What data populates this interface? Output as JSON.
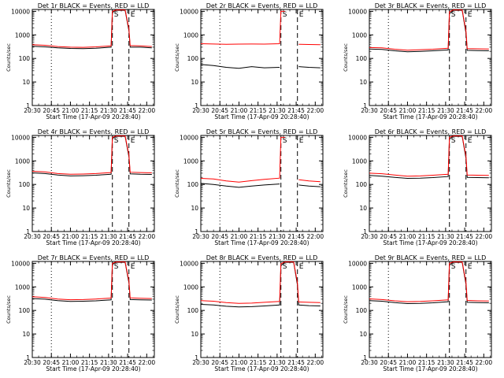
{
  "xlabel": "Start Time (17-Apr-09 20:28:40)",
  "ylabel": "Counts/sec",
  "x_tick_labels": [
    "20:30",
    "20:45",
    "21:00",
    "21:15",
    "21:30",
    "21:45",
    "22:00"
  ],
  "y_tick_labels": [
    "1",
    "10",
    "100",
    "1000",
    "10000"
  ],
  "markers": {
    "S": "S",
    "E": "E"
  },
  "colors": {
    "events": "#000000",
    "lld": "#ff0000"
  },
  "chart_data": [
    {
      "type": "line",
      "title": "Det 1r BLACK = Events, RED = LLD",
      "xlabel": "Start Time (17-Apr-09 20:28:40)",
      "ylabel": "Counts/sec",
      "xlim": [
        "20:30",
        "22:06"
      ],
      "ylim": [
        1,
        12000
      ],
      "yscale": "log",
      "vlines": [
        {
          "x": "20:45",
          "style": "dotted"
        },
        {
          "x": "21:33",
          "style": "dashed",
          "label": "S"
        },
        {
          "x": "21:46",
          "style": "dashed",
          "label": "E"
        }
      ],
      "series": [
        {
          "name": "Events",
          "x": [
            "20:30",
            "20:40",
            "20:50",
            "21:00",
            "21:10",
            "21:20",
            "21:32",
            "21:33",
            "21:36",
            "21:43",
            "21:46",
            "21:47",
            "21:55",
            "22:00",
            "22:04"
          ],
          "values": [
            330,
            310,
            280,
            265,
            260,
            270,
            300,
            9000,
            11000,
            11000,
            1500,
            300,
            300,
            290,
            280
          ]
        },
        {
          "name": "LLD",
          "x": [
            "20:30",
            "20:40",
            "20:50",
            "21:00",
            "21:10",
            "21:20",
            "21:32",
            "21:33",
            "21:36",
            "21:43",
            "21:46",
            "21:47",
            "21:55",
            "22:00",
            "22:04"
          ],
          "values": [
            380,
            360,
            320,
            300,
            295,
            310,
            340,
            10000,
            11500,
            11500,
            1800,
            350,
            340,
            330,
            320
          ]
        }
      ]
    },
    {
      "type": "line",
      "title": "Det 2r BLACK = Events, RED = LLD",
      "xlabel": "Start Time (17-Apr-09 20:28:40)",
      "ylabel": "Counts/sec",
      "xlim": [
        "20:30",
        "22:06"
      ],
      "ylim": [
        1,
        12000
      ],
      "yscale": "log",
      "vlines": [
        {
          "x": "20:45",
          "style": "dotted"
        },
        {
          "x": "21:33",
          "style": "dashed",
          "label": "S"
        },
        {
          "x": "21:46",
          "style": "dashed",
          "label": "E"
        }
      ],
      "series": [
        {
          "name": "Events",
          "x": [
            "20:30",
            "20:40",
            "20:50",
            "21:00",
            "21:10",
            "21:20",
            "21:32",
            "21:33",
            "21:36",
            "21:38",
            "21:43",
            "21:47",
            "21:55",
            "22:04"
          ],
          "values": [
            55,
            50,
            42,
            38,
            45,
            40,
            42,
            null,
            null,
            null,
            null,
            45,
            42,
            40
          ]
        },
        {
          "name": "LLD",
          "x": [
            "20:30",
            "20:40",
            "20:50",
            "21:00",
            "21:10",
            "21:20",
            "21:32",
            "21:33",
            "21:36",
            "21:38",
            "21:43",
            "21:47",
            "21:55",
            "22:04"
          ],
          "values": [
            420,
            410,
            400,
            405,
            410,
            405,
            420,
            10000,
            10000,
            null,
            null,
            400,
            390,
            380
          ]
        }
      ]
    },
    {
      "type": "line",
      "title": "Det 3r BLACK = Events, RED = LLD",
      "xlabel": "Start Time (17-Apr-09 20:28:40)",
      "ylabel": "Counts/sec",
      "xlim": [
        "20:30",
        "22:06"
      ],
      "ylim": [
        1,
        12000
      ],
      "yscale": "log",
      "vlines": [
        {
          "x": "20:45",
          "style": "dotted"
        },
        {
          "x": "21:33",
          "style": "dashed",
          "label": "S"
        },
        {
          "x": "21:46",
          "style": "dashed",
          "label": "E"
        }
      ],
      "series": [
        {
          "name": "Events",
          "x": [
            "20:30",
            "20:40",
            "20:50",
            "21:00",
            "21:10",
            "21:20",
            "21:32",
            "21:33",
            "21:36",
            "21:43",
            "21:46",
            "21:47",
            "21:55",
            "22:04"
          ],
          "values": [
            250,
            240,
            210,
            190,
            200,
            210,
            230,
            8000,
            11000,
            11000,
            1200,
            220,
            215,
            210
          ]
        },
        {
          "name": "LLD",
          "x": [
            "20:30",
            "20:40",
            "20:50",
            "21:00",
            "21:10",
            "21:20",
            "21:32",
            "21:33",
            "21:36",
            "21:43",
            "21:46",
            "21:47",
            "21:55",
            "22:04"
          ],
          "values": [
            290,
            280,
            245,
            225,
            235,
            245,
            270,
            9500,
            11500,
            11500,
            1500,
            260,
            255,
            250
          ]
        }
      ]
    },
    {
      "type": "line",
      "title": "Det 4r BLACK = Events, RED = LLD",
      "xlabel": "Start Time (17-Apr-09 20:28:40)",
      "ylabel": "Counts/sec",
      "xlim": [
        "20:30",
        "22:06"
      ],
      "ylim": [
        1,
        12000
      ],
      "yscale": "log",
      "vlines": [
        {
          "x": "20:45",
          "style": "dotted"
        },
        {
          "x": "21:33",
          "style": "dashed",
          "label": "S"
        },
        {
          "x": "21:46",
          "style": "dashed",
          "label": "E"
        }
      ],
      "series": [
        {
          "name": "Events",
          "x": [
            "20:30",
            "20:40",
            "20:50",
            "21:00",
            "21:10",
            "21:20",
            "21:32",
            "21:33",
            "21:36",
            "21:43",
            "21:46",
            "21:47",
            "21:55",
            "22:04"
          ],
          "values": [
            310,
            290,
            250,
            230,
            235,
            245,
            270,
            9000,
            11000,
            11000,
            1500,
            280,
            270,
            265
          ]
        },
        {
          "name": "LLD",
          "x": [
            "20:30",
            "20:40",
            "20:50",
            "21:00",
            "21:10",
            "21:20",
            "21:32",
            "21:33",
            "21:36",
            "21:43",
            "21:46",
            "21:47",
            "21:55",
            "22:04"
          ],
          "values": [
            360,
            340,
            290,
            270,
            275,
            290,
            320,
            10000,
            11500,
            11500,
            1800,
            330,
            320,
            310
          ]
        }
      ]
    },
    {
      "type": "line",
      "title": "Det 5r BLACK = Events, RED = LLD",
      "xlabel": "Start Time (17-Apr-09 20:28:40)",
      "ylabel": "Counts/sec",
      "xlim": [
        "20:30",
        "22:06"
      ],
      "ylim": [
        1,
        12000
      ],
      "yscale": "log",
      "vlines": [
        {
          "x": "20:45",
          "style": "dotted"
        },
        {
          "x": "21:33",
          "style": "dashed",
          "label": "S"
        },
        {
          "x": "21:46",
          "style": "dashed",
          "label": "E"
        }
      ],
      "series": [
        {
          "name": "Events",
          "x": [
            "20:30",
            "20:40",
            "20:50",
            "21:00",
            "21:10",
            "21:20",
            "21:32",
            "21:33",
            "21:36",
            "21:38",
            "21:43",
            "21:47",
            "21:55",
            "22:04"
          ],
          "values": [
            110,
            100,
            85,
            75,
            85,
            95,
            105,
            null,
            null,
            null,
            null,
            95,
            85,
            80
          ]
        },
        {
          "name": "LLD",
          "x": [
            "20:30",
            "20:40",
            "20:50",
            "21:00",
            "21:10",
            "21:20",
            "21:32",
            "21:33",
            "21:36",
            "21:38",
            "21:43",
            "21:47",
            "21:55",
            "22:04"
          ],
          "values": [
            180,
            170,
            140,
            125,
            145,
            165,
            185,
            10000,
            10000,
            null,
            null,
            160,
            140,
            130
          ]
        }
      ]
    },
    {
      "type": "line",
      "title": "Det 6r BLACK = Events, RED = LLD",
      "xlabel": "Start Time (17-Apr-09 20:28:40)",
      "ylabel": "Counts/sec",
      "xlim": [
        "20:30",
        "22:06"
      ],
      "ylim": [
        1,
        12000
      ],
      "yscale": "log",
      "vlines": [
        {
          "x": "20:45",
          "style": "dotted"
        },
        {
          "x": "21:33",
          "style": "dashed",
          "label": "S"
        },
        {
          "x": "21:46",
          "style": "dashed",
          "label": "E"
        }
      ],
      "series": [
        {
          "name": "Events",
          "x": [
            "20:30",
            "20:40",
            "20:50",
            "21:00",
            "21:10",
            "21:20",
            "21:32",
            "21:33",
            "21:36",
            "21:43",
            "21:46",
            "21:47",
            "21:55",
            "22:04"
          ],
          "values": [
            240,
            225,
            200,
            180,
            185,
            195,
            215,
            8500,
            11000,
            11000,
            1300,
            200,
            195,
            190
          ]
        },
        {
          "name": "LLD",
          "x": [
            "20:30",
            "20:40",
            "20:50",
            "21:00",
            "21:10",
            "21:20",
            "21:32",
            "21:33",
            "21:36",
            "21:43",
            "21:46",
            "21:47",
            "21:55",
            "22:04"
          ],
          "values": [
            300,
            285,
            250,
            225,
            230,
            245,
            270,
            10000,
            11500,
            11500,
            1600,
            250,
            245,
            240
          ]
        }
      ]
    },
    {
      "type": "line",
      "title": "Det 7r BLACK = Events, RED = LLD",
      "xlabel": "Start Time (17-Apr-09 20:28:40)",
      "ylabel": "Counts/sec",
      "xlim": [
        "20:30",
        "22:06"
      ],
      "ylim": [
        1,
        12000
      ],
      "yscale": "log",
      "vlines": [
        {
          "x": "20:45",
          "style": "dotted"
        },
        {
          "x": "21:33",
          "style": "dashed",
          "label": "S"
        },
        {
          "x": "21:46",
          "style": "dashed",
          "label": "E"
        }
      ],
      "series": [
        {
          "name": "Events",
          "x": [
            "20:30",
            "20:40",
            "20:50",
            "21:00",
            "21:10",
            "21:20",
            "21:32",
            "21:33",
            "21:36",
            "21:43",
            "21:46",
            "21:47",
            "21:55",
            "22:04"
          ],
          "values": [
            320,
            300,
            260,
            240,
            245,
            255,
            280,
            9000,
            11000,
            11000,
            1500,
            290,
            280,
            275
          ]
        },
        {
          "name": "LLD",
          "x": [
            "20:30",
            "20:40",
            "20:50",
            "21:00",
            "21:10",
            "21:20",
            "21:32",
            "21:33",
            "21:36",
            "21:43",
            "21:46",
            "21:47",
            "21:55",
            "22:04"
          ],
          "values": [
            380,
            355,
            305,
            285,
            290,
            305,
            335,
            10000,
            11500,
            11500,
            1800,
            340,
            330,
            320
          ]
        }
      ]
    },
    {
      "type": "line",
      "title": "Det 8r BLACK = Events, RED = LLD",
      "xlabel": "Start Time (17-Apr-09 20:28:40)",
      "ylabel": "Counts/sec",
      "xlim": [
        "20:30",
        "22:06"
      ],
      "ylim": [
        1,
        12000
      ],
      "yscale": "log",
      "vlines": [
        {
          "x": "20:45",
          "style": "dotted"
        },
        {
          "x": "21:33",
          "style": "dashed",
          "label": "S"
        },
        {
          "x": "21:46",
          "style": "dashed",
          "label": "E"
        }
      ],
      "series": [
        {
          "name": "Events",
          "x": [
            "20:30",
            "20:40",
            "20:50",
            "21:00",
            "21:10",
            "21:20",
            "21:32",
            "21:33",
            "21:36",
            "21:43",
            "21:46",
            "21:47",
            "21:55",
            "22:04"
          ],
          "values": [
            180,
            170,
            150,
            140,
            145,
            155,
            170,
            8000,
            11000,
            11000,
            1200,
            170,
            160,
            155
          ]
        },
        {
          "name": "LLD",
          "x": [
            "20:30",
            "20:40",
            "20:50",
            "21:00",
            "21:10",
            "21:20",
            "21:32",
            "21:33",
            "21:36",
            "21:43",
            "21:46",
            "21:47",
            "21:55",
            "22:04"
          ],
          "values": [
            260,
            245,
            215,
            200,
            205,
            220,
            240,
            9500,
            11500,
            11500,
            1500,
            230,
            220,
            215
          ]
        }
      ]
    },
    {
      "type": "line",
      "title": "Det 9r BLACK = Events, RED = LLD",
      "xlabel": "Start Time (17-Apr-09 20:28:40)",
      "ylabel": "Counts/sec",
      "xlim": [
        "20:30",
        "22:06"
      ],
      "ylim": [
        1,
        12000
      ],
      "yscale": "log",
      "vlines": [
        {
          "x": "20:45",
          "style": "dotted"
        },
        {
          "x": "21:33",
          "style": "dashed",
          "label": "S"
        },
        {
          "x": "21:46",
          "style": "dashed",
          "label": "E"
        }
      ],
      "series": [
        {
          "name": "Events",
          "x": [
            "20:30",
            "20:40",
            "20:50",
            "21:00",
            "21:10",
            "21:20",
            "21:32",
            "21:33",
            "21:36",
            "21:43",
            "21:46",
            "21:47",
            "21:55",
            "22:04"
          ],
          "values": [
            260,
            245,
            215,
            195,
            200,
            210,
            235,
            8500,
            11000,
            11000,
            1300,
            220,
            215,
            210
          ]
        },
        {
          "name": "LLD",
          "x": [
            "20:30",
            "20:40",
            "20:50",
            "21:00",
            "21:10",
            "21:20",
            "21:32",
            "21:33",
            "21:36",
            "21:43",
            "21:46",
            "21:47",
            "21:55",
            "22:04"
          ],
          "values": [
            310,
            290,
            255,
            235,
            240,
            255,
            280,
            10000,
            11500,
            11500,
            1600,
            265,
            255,
            250
          ]
        }
      ]
    }
  ]
}
